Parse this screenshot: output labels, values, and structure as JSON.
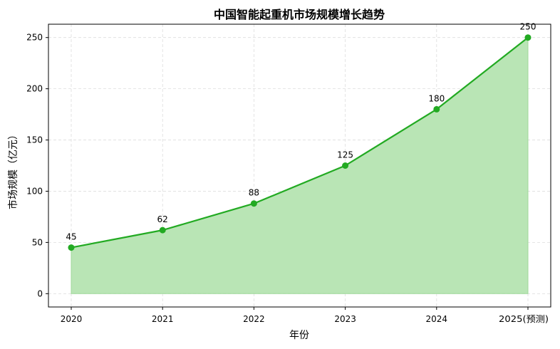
{
  "chart_data": {
    "type": "area",
    "title": "中国智能起重机市场规模增长趋势",
    "xlabel": "年份",
    "ylabel": "市场规模（亿元）",
    "categories": [
      "2020",
      "2021",
      "2022",
      "2023",
      "2024",
      "2025(预测)"
    ],
    "series": [
      {
        "values": [
          45,
          62,
          88,
          125,
          180,
          250
        ]
      }
    ],
    "data_labels": [
      "45",
      "62",
      "88",
      "125",
      "180",
      "250"
    ],
    "yticks": [
      0,
      50,
      100,
      150,
      200,
      250
    ],
    "ytick_labels": [
      "0",
      "50",
      "100",
      "150",
      "200",
      "250"
    ],
    "ylim": [
      -13,
      263
    ],
    "grid": true,
    "colors": {
      "line": "#22aa22",
      "fill": "#b9e5b5",
      "grid": "#dddddd",
      "axis": "#000000"
    }
  }
}
